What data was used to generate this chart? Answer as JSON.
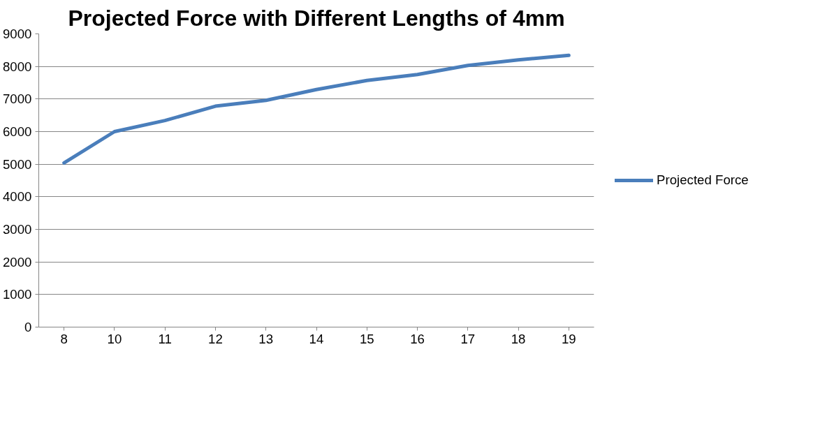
{
  "chart_data": {
    "type": "line",
    "title": "Projected Force with Different Lengths of 4mm",
    "categories": [
      "8",
      "10",
      "11",
      "12",
      "13",
      "14",
      "15",
      "16",
      "17",
      "18",
      "19"
    ],
    "series": [
      {
        "name": "Projected Force",
        "color": "#4a7ebb",
        "values": [
          5040,
          6000,
          6340,
          6780,
          6960,
          7290,
          7570,
          7750,
          8030,
          8200,
          8340
        ]
      }
    ],
    "ylim": [
      0,
      9000
    ],
    "yticks": [
      0,
      1000,
      2000,
      3000,
      4000,
      5000,
      6000,
      7000,
      8000,
      9000
    ],
    "grid": "y",
    "legend": "right",
    "marker": "none",
    "line_style": "solid"
  }
}
